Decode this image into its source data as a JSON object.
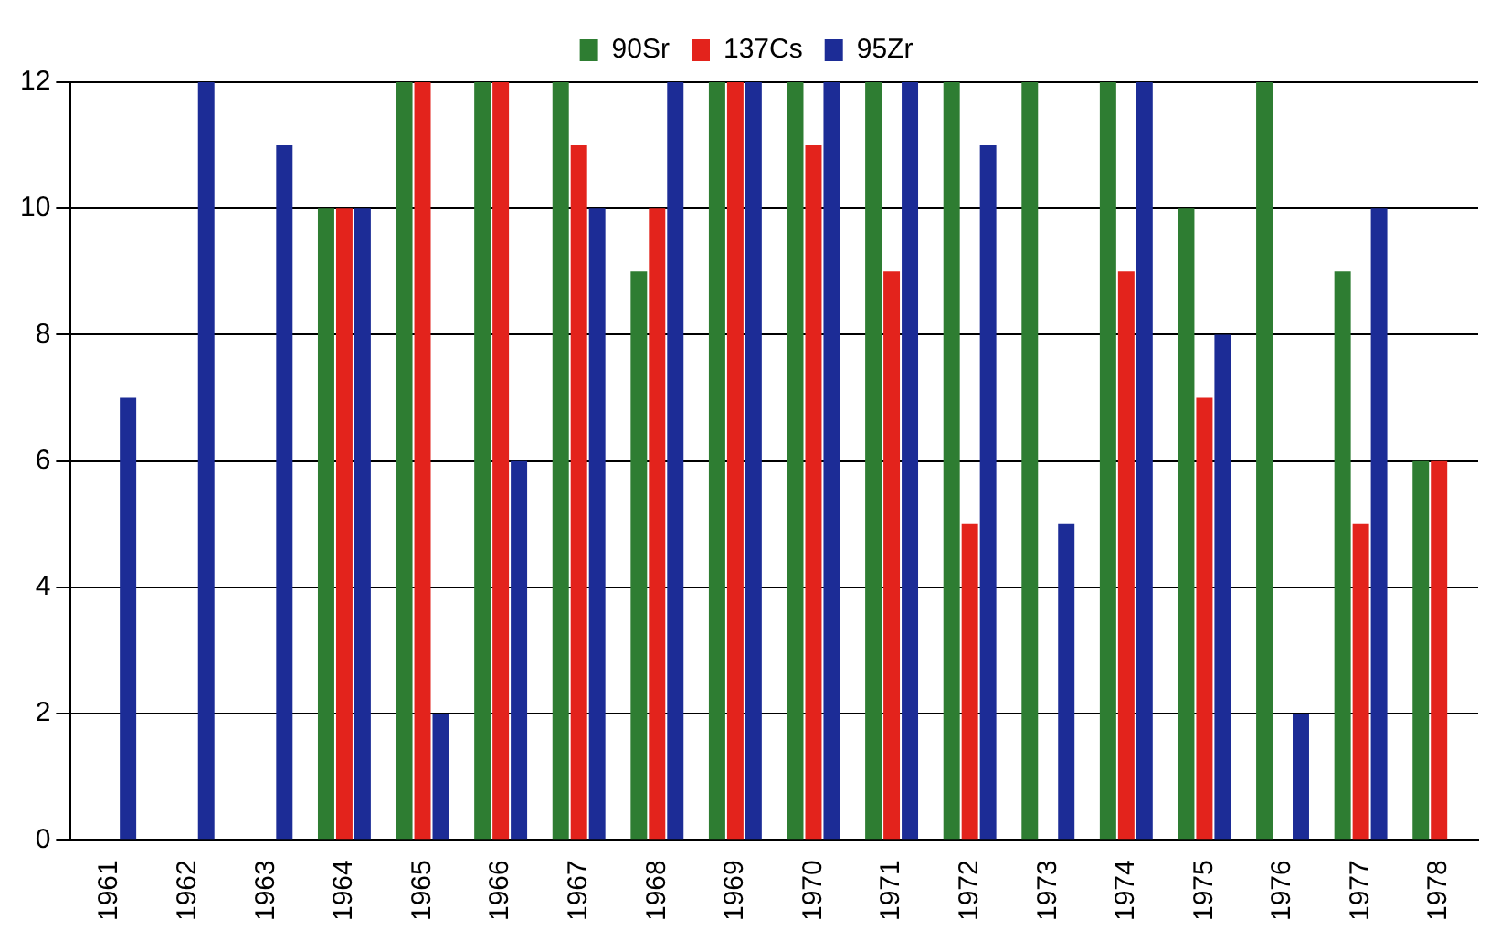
{
  "chart_data": {
    "type": "bar",
    "categories": [
      "1961",
      "1962",
      "1963",
      "1964",
      "1965",
      "1966",
      "1967",
      "1968",
      "1969",
      "1970",
      "1971",
      "1972",
      "1973",
      "1974",
      "1975",
      "1976",
      "1977",
      "1978"
    ],
    "series": [
      {
        "name": "90Sr",
        "color": "#2e7d32",
        "values": [
          null,
          null,
          null,
          10,
          12,
          12,
          12,
          9,
          12,
          12,
          12,
          12,
          12,
          12,
          10,
          12,
          9,
          6
        ]
      },
      {
        "name": "137Cs",
        "color": "#e3231c",
        "values": [
          null,
          null,
          null,
          10,
          12,
          12,
          11,
          10,
          12,
          11,
          9,
          5,
          null,
          9,
          7,
          null,
          5,
          6
        ]
      },
      {
        "name": "95Zr",
        "color": "#1c2c96",
        "values": [
          7,
          12,
          11,
          10,
          2,
          6,
          10,
          12,
          12,
          12,
          12,
          11,
          5,
          12,
          8,
          2,
          10,
          null
        ]
      }
    ],
    "ylim": [
      0,
      12
    ],
    "yticks": [
      0,
      2,
      4,
      6,
      8,
      10,
      12
    ],
    "grid": "y",
    "legend": "top"
  }
}
